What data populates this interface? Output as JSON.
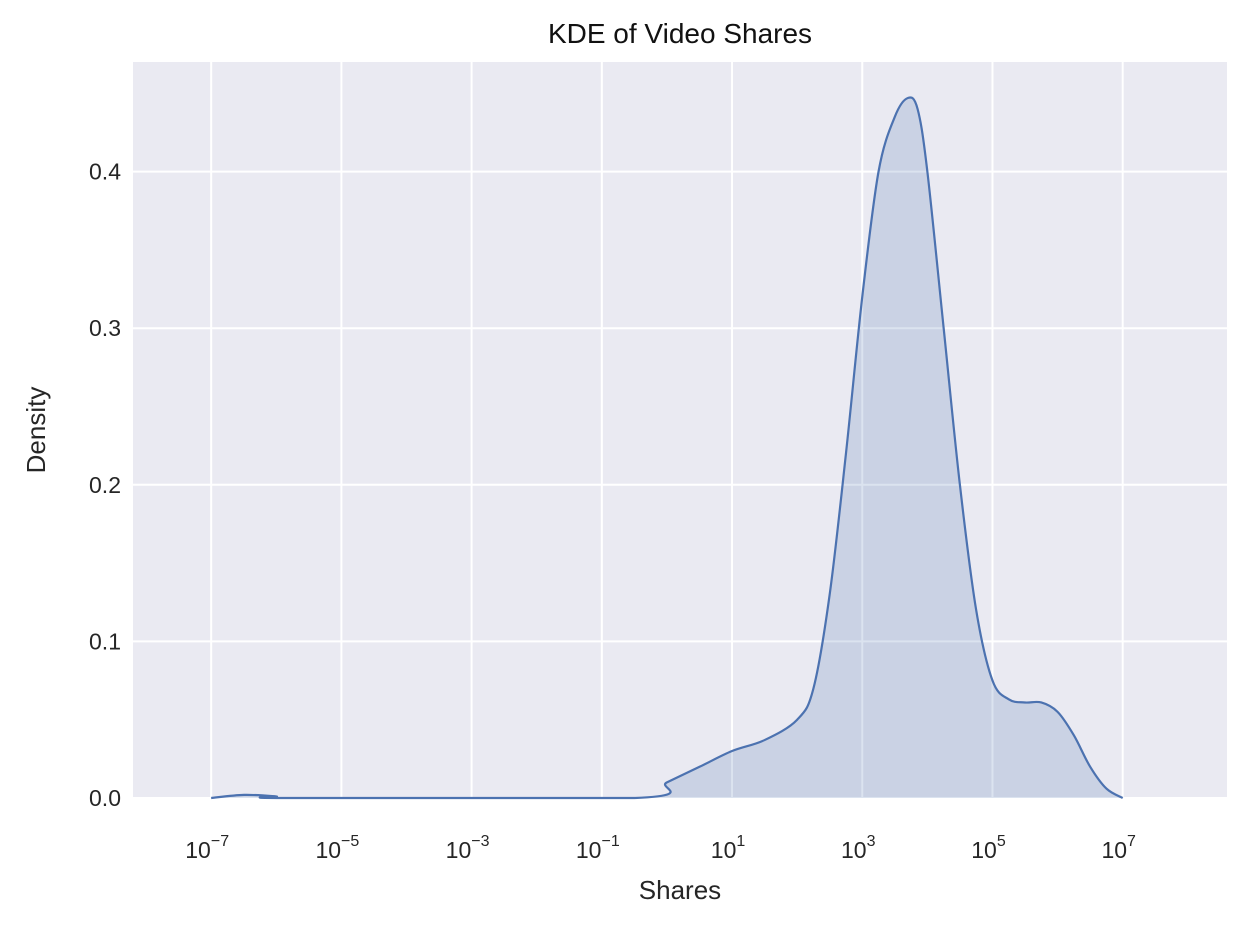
{
  "chart_data": {
    "type": "area",
    "title": "KDE of Video Shares",
    "xlabel": "Shares",
    "ylabel": "Density",
    "x_scale": "log",
    "xlim": [
      6.3e-09,
      400000000.0
    ],
    "ylim": [
      0,
      0.47
    ],
    "grid": true,
    "legend": "none",
    "x_ticks": [
      {
        "base": "10",
        "exp": "−7",
        "value": 1e-07
      },
      {
        "base": "10",
        "exp": "−5",
        "value": 1e-05
      },
      {
        "base": "10",
        "exp": "−3",
        "value": 0.001
      },
      {
        "base": "10",
        "exp": "−1",
        "value": 0.1
      },
      {
        "base": "10",
        "exp": "1",
        "value": 10
      },
      {
        "base": "10",
        "exp": "3",
        "value": 1000
      },
      {
        "base": "10",
        "exp": "5",
        "value": 100000
      },
      {
        "base": "10",
        "exp": "7",
        "value": 10000000
      }
    ],
    "y_ticks": [
      {
        "label": "0.0",
        "value": 0.0
      },
      {
        "label": "0.1",
        "value": 0.1
      },
      {
        "label": "0.2",
        "value": 0.2
      },
      {
        "label": "0.3",
        "value": 0.3
      },
      {
        "label": "0.4",
        "value": 0.4
      }
    ],
    "series": [
      {
        "x": [
          1e-07,
          3.2e-07,
          1e-06,
          1.5e-06,
          0.32,
          1,
          3.2,
          10,
          31.6,
          100,
          178,
          316,
          562,
          1000,
          1778,
          3162,
          5012,
          7079,
          10000.0,
          17800.0,
          31600.0,
          56200.0,
          100000.0,
          178000.0,
          316000.0,
          562000.0,
          1000000.0,
          1780000.0,
          3160000.0,
          5620000.0,
          10000000.0
        ],
        "y": [
          0.0,
          0.002,
          0.001,
          0.0,
          0.0,
          0.01,
          0.02,
          0.03,
          0.037,
          0.05,
          0.07,
          0.13,
          0.22,
          0.32,
          0.4,
          0.435,
          0.447,
          0.44,
          0.4,
          0.3,
          0.2,
          0.12,
          0.075,
          0.063,
          0.061,
          0.061,
          0.055,
          0.04,
          0.02,
          0.006,
          0.0
        ]
      }
    ],
    "colors": {
      "line": "#4c72b0",
      "fill": "#4c72b0",
      "plot_background": "#eaeaf2",
      "grid": "#ffffff"
    }
  }
}
